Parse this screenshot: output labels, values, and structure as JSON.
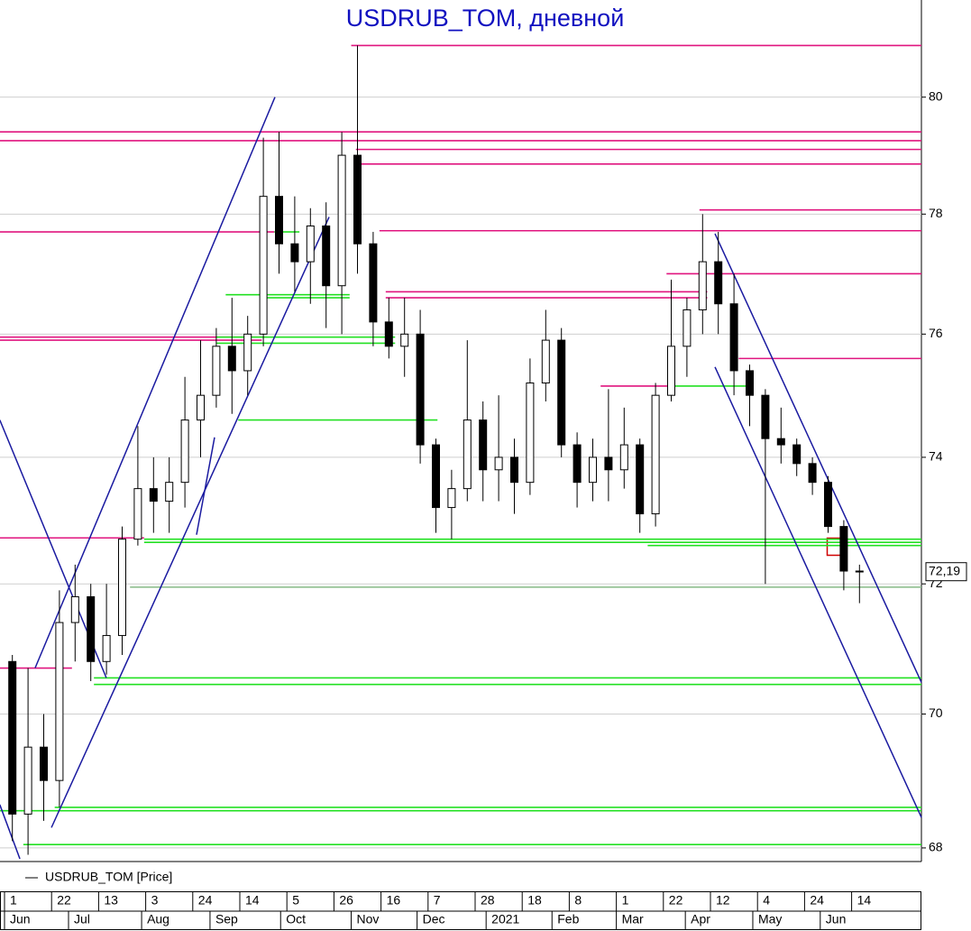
{
  "chart_data": {
    "type": "candlestick",
    "title": "USDRUB_TOM, дневной",
    "log_scale": true,
    "grid": true,
    "categories": [
      "1",
      null,
      null,
      "22",
      null,
      null,
      "13",
      null,
      null,
      "3",
      null,
      null,
      "24",
      null,
      null,
      "14",
      null,
      null,
      "5",
      null,
      null,
      "26",
      null,
      null,
      "16",
      null,
      null,
      "7",
      null,
      null,
      "28",
      null,
      null,
      "18",
      null,
      null,
      "8",
      null,
      null,
      "1",
      null,
      null,
      "22",
      null,
      null,
      "12",
      null,
      null,
      "4",
      null,
      null,
      "24",
      null,
      null,
      "14"
    ],
    "month_ticks": [
      {
        "value": 0,
        "label": "Jun"
      },
      {
        "value": 4.08,
        "label": "Jul"
      },
      {
        "value": 8.74,
        "label": "Aug"
      },
      {
        "value": 13.1,
        "label": "Sep"
      },
      {
        "value": 17.6,
        "label": "Oct"
      },
      {
        "value": 22.1,
        "label": "Nov"
      },
      {
        "value": 26.3,
        "label": "Dec"
      },
      {
        "value": 30.7,
        "label": "2021"
      },
      {
        "value": 34.9,
        "label": "Feb"
      },
      {
        "value": 39.0,
        "label": "Mar"
      },
      {
        "value": 43.4,
        "label": "Apr"
      },
      {
        "value": 47.7,
        "label": "May"
      },
      {
        "value": 52.0,
        "label": "Jun"
      }
    ],
    "series": [
      {
        "name": "USDRUB_TOM [Price]",
        "color": "#000000",
        "open": [
          70.8,
          68.5,
          69.5,
          69.0,
          71.4,
          71.8,
          70.8,
          71.2,
          72.7,
          73.5,
          73.3,
          73.6,
          74.6,
          75.0,
          75.8,
          75.4,
          76.0,
          78.3,
          77.5,
          77.2,
          77.8,
          76.8,
          79.0,
          77.5,
          76.2,
          75.8,
          76.0,
          74.2,
          73.2,
          73.5,
          74.6,
          73.8,
          74.0,
          73.6,
          75.2,
          75.9,
          74.2,
          73.6,
          74.0,
          73.8,
          74.2,
          73.1,
          75.0,
          75.8,
          76.4,
          77.2,
          76.5,
          75.4,
          75.0,
          74.3,
          74.2,
          73.9,
          73.6,
          72.9,
          72.2
        ],
        "high": [
          70.9,
          70.7,
          70.0,
          71.9,
          72.3,
          72.0,
          72.0,
          72.9,
          74.5,
          74.0,
          74.0,
          75.3,
          75.9,
          76.1,
          76.6,
          76.3,
          79.3,
          79.4,
          78.3,
          78.1,
          78.2,
          79.4,
          80.9,
          77.7,
          76.6,
          76.6,
          76.4,
          74.3,
          73.8,
          75.9,
          74.9,
          75.0,
          74.3,
          75.6,
          76.4,
          76.1,
          74.4,
          74.3,
          75.1,
          74.8,
          74.3,
          75.2,
          76.9,
          76.6,
          78.0,
          77.7,
          77.0,
          75.5,
          75.1,
          74.8,
          74.3,
          74.0,
          73.7,
          73.0,
          72.3
        ],
        "low": [
          68.1,
          67.9,
          68.4,
          68.6,
          70.8,
          70.5,
          70.6,
          70.9,
          72.6,
          72.8,
          72.8,
          73.2,
          74.0,
          74.8,
          74.7,
          75.0,
          75.8,
          77.0,
          76.7,
          76.5,
          76.1,
          76.0,
          77.0,
          75.8,
          75.6,
          75.3,
          73.9,
          72.8,
          72.7,
          73.3,
          73.3,
          73.3,
          73.1,
          73.4,
          74.9,
          74.0,
          73.2,
          73.3,
          73.3,
          73.5,
          72.8,
          72.9,
          74.9,
          75.3,
          76.0,
          76.0,
          75.0,
          74.5,
          72.0,
          73.9,
          73.7,
          73.4,
          72.8,
          71.9,
          71.7
        ],
        "close": [
          68.5,
          69.5,
          69.0,
          71.4,
          71.8,
          70.8,
          71.2,
          72.7,
          73.5,
          73.3,
          73.6,
          74.6,
          75.0,
          75.8,
          75.4,
          76.0,
          78.3,
          77.5,
          77.2,
          77.8,
          76.8,
          79.0,
          77.5,
          76.2,
          75.8,
          76.0,
          74.2,
          73.2,
          73.5,
          74.6,
          73.8,
          74.0,
          73.6,
          75.2,
          75.9,
          74.2,
          73.6,
          74.0,
          73.8,
          74.2,
          73.1,
          75.0,
          75.8,
          76.4,
          77.2,
          76.5,
          75.4,
          75.0,
          74.3,
          74.2,
          73.9,
          73.6,
          72.9,
          72.2,
          72.19
        ]
      }
    ],
    "last_price": {
      "value": 72.19,
      "label": "72,19"
    },
    "ylim": [
      67.8,
      81.7
    ],
    "yticks": [
      68,
      70,
      72,
      74,
      76,
      78,
      80
    ],
    "levels": [
      {
        "value": 80.9,
        "from": 22.1,
        "to": 58.45,
        "color": "#e0157f"
      },
      {
        "value": 79.4,
        "from": -0.3,
        "to": 58.45,
        "color": "#e0157f"
      },
      {
        "value": 79.25,
        "from": -0.3,
        "to": 58.45,
        "color": "#e0157f"
      },
      {
        "value": 79.1,
        "from": 22.4,
        "to": 58.45,
        "color": "#e0157f"
      },
      {
        "value": 78.85,
        "from": 22.6,
        "to": 58.45,
        "color": "#e0157f"
      },
      {
        "value": 78.07,
        "from": 44.3,
        "to": 58.45,
        "color": "#e0157f"
      },
      {
        "value": 77.7,
        "from": -0.3,
        "to": 17.2,
        "color": "#e0157f"
      },
      {
        "value": 77.72,
        "from": 23.9,
        "to": 58.45,
        "color": "#e0157f"
      },
      {
        "value": 77.0,
        "from": 42.2,
        "to": 58.45,
        "color": "#e0157f"
      },
      {
        "value": 76.7,
        "from": 24.3,
        "to": 44.8,
        "color": "#e0157f"
      },
      {
        "value": 76.6,
        "from": 24.3,
        "to": 44.8,
        "color": "#e0157f"
      },
      {
        "value": 75.95,
        "from": -0.3,
        "to": 16.4,
        "color": "#e0157f"
      },
      {
        "value": 75.9,
        "from": -0.3,
        "to": 16.4,
        "color": "#e0157f"
      },
      {
        "value": 75.6,
        "from": 46.8,
        "to": 58.45,
        "color": "#e0157f"
      },
      {
        "value": 75.15,
        "from": 38.0,
        "to": 42.5,
        "color": "#e0157f"
      },
      {
        "value": 72.72,
        "from": -0.3,
        "to": 8.9,
        "color": "#e0157f"
      },
      {
        "value": 70.7,
        "from": -0.3,
        "to": 4.3,
        "color": "#e0157f"
      },
      {
        "value": 77.7,
        "from": 17.2,
        "to": 18.8,
        "color": "#22e022"
      },
      {
        "value": 76.65,
        "from": 14.1,
        "to": 22.0,
        "color": "#22e022"
      },
      {
        "value": 76.6,
        "from": 16.7,
        "to": 22.0,
        "color": "#22e022"
      },
      {
        "value": 75.95,
        "from": 13.5,
        "to": 24.9,
        "color": "#22e022"
      },
      {
        "value": 75.85,
        "from": 13.5,
        "to": 24.9,
        "color": "#22e022"
      },
      {
        "value": 75.15,
        "from": 42.5,
        "to": 47.7,
        "color": "#22e022"
      },
      {
        "value": 74.6,
        "from": 14.9,
        "to": 27.6,
        "color": "#22e022"
      },
      {
        "value": 72.7,
        "from": 8.9,
        "to": 58.45,
        "color": "#22e022"
      },
      {
        "value": 72.65,
        "from": 8.9,
        "to": 58.45,
        "color": "#22e022"
      },
      {
        "value": 72.6,
        "from": 41.0,
        "to": 58.45,
        "color": "#22e022"
      },
      {
        "value": 71.95,
        "from": 8.0,
        "to": 58.45,
        "color": "#8fbf8f"
      },
      {
        "value": 70.55,
        "from": 5.7,
        "to": 58.45,
        "color": "#22e022"
      },
      {
        "value": 70.45,
        "from": 5.7,
        "to": 58.45,
        "color": "#22e022"
      },
      {
        "value": 68.6,
        "from": 3.2,
        "to": 58.45,
        "color": "#22e022"
      },
      {
        "value": 68.55,
        "from": -0.3,
        "to": 58.45,
        "color": "#22e022"
      },
      {
        "value": 68.05,
        "from": 1.2,
        "to": 58.45,
        "color": "#22e022"
      }
    ],
    "trendlines": [
      {
        "from": [
          -0.3,
          74.6
        ],
        "to": [
          6.49,
          70.55
        ],
        "color": "#1a1aa0"
      },
      {
        "from": [
          -0.3,
          68.64
        ],
        "to": [
          0.98,
          67.84
        ],
        "color": "#1a1aa0"
      },
      {
        "from": [
          1.95,
          70.7
        ],
        "to": [
          17.24,
          80.0
        ],
        "color": "#1a1aa0"
      },
      {
        "from": [
          2.99,
          68.3
        ],
        "to": [
          20.69,
          77.95
        ],
        "color": "#1a1aa0"
      },
      {
        "from": [
          12.24,
          72.77
        ],
        "to": [
          13.39,
          74.32
        ],
        "color": "#1a1aa0"
      },
      {
        "from": [
          45.29,
          77.67
        ],
        "to": [
          58.45,
          70.48
        ],
        "color": "#1a1aa0"
      },
      {
        "from": [
          45.29,
          75.46
        ],
        "to": [
          58.45,
          68.45
        ],
        "color": "#1a1aa0"
      }
    ]
  }
}
